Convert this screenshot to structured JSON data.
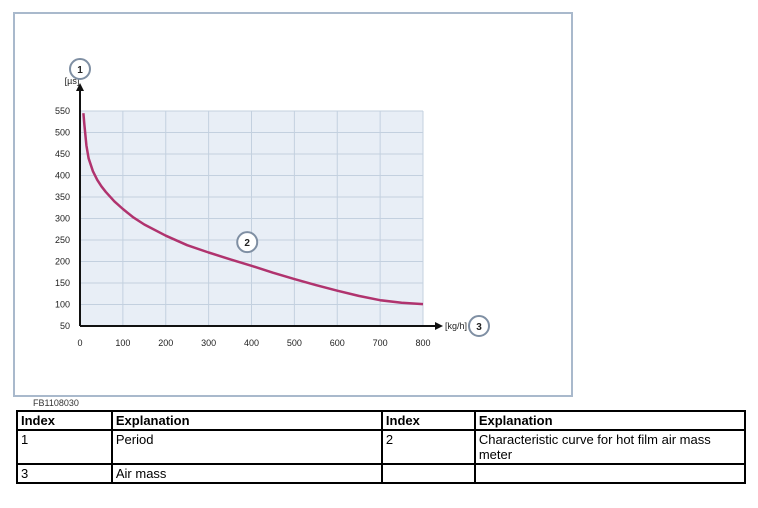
{
  "figure_id": "FB1108030",
  "chart_data": {
    "type": "line",
    "title": "",
    "xlabel": "[kg/h]",
    "ylabel": "[µs]",
    "xlim": [
      0,
      800
    ],
    "ylim": [
      50,
      550
    ],
    "grid": true,
    "x_ticks": [
      0,
      100,
      200,
      300,
      400,
      500,
      600,
      700,
      800
    ],
    "y_ticks": [
      50,
      100,
      150,
      200,
      250,
      300,
      350,
      400,
      450,
      500,
      550
    ],
    "callouts": {
      "y_axis": "1",
      "curve": "2",
      "x_axis": "3"
    },
    "series": [
      {
        "color": "#b0336e",
        "x": [
          8,
          10,
          15,
          20,
          30,
          40,
          50,
          60,
          80,
          100,
          125,
          150,
          200,
          250,
          300,
          350,
          400,
          450,
          500,
          550,
          600,
          650,
          700,
          750,
          800
        ],
        "y": [
          545,
          520,
          470,
          440,
          410,
          390,
          375,
          362,
          340,
          322,
          302,
          286,
          260,
          238,
          221,
          205,
          190,
          174,
          159,
          145,
          132,
          120,
          110,
          104,
          101
        ]
      }
    ]
  },
  "legend_table": {
    "headers": [
      "Index",
      "Explanation",
      "Index",
      "Explanation"
    ],
    "rows": [
      [
        "1",
        "Period",
        "2",
        "Characteristic curve for hot film air mass meter"
      ],
      [
        "3",
        "Air mass",
        "",
        ""
      ]
    ]
  }
}
